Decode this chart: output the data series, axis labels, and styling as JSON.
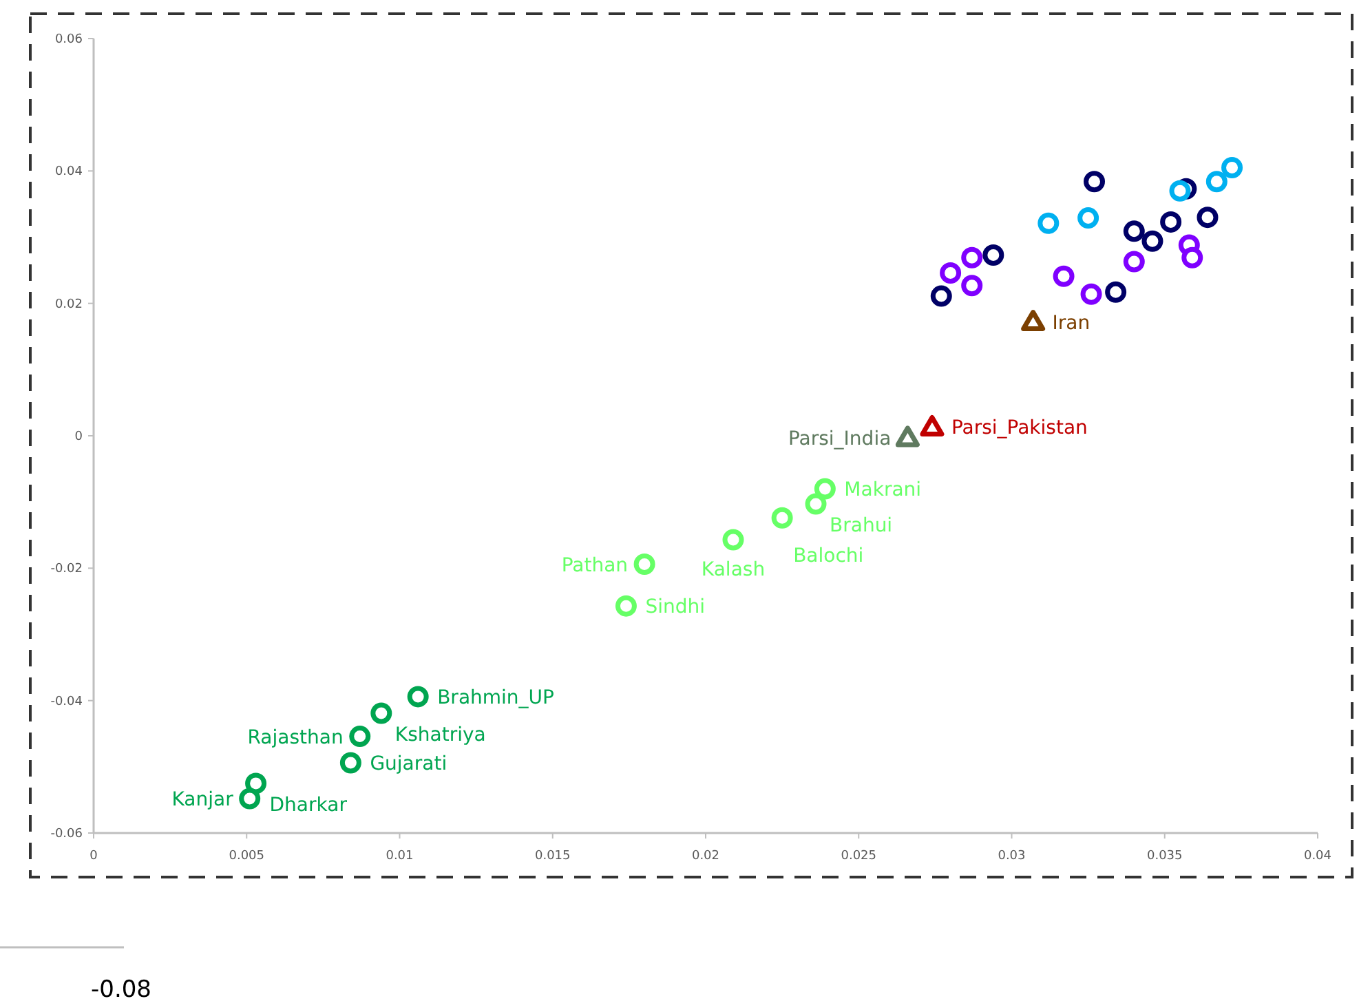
{
  "chart_data": {
    "type": "scatter",
    "xlim": [
      0,
      0.04
    ],
    "ylim": [
      -0.06,
      0.06
    ],
    "xticks": [
      0,
      0.005,
      0.01,
      0.015,
      0.02,
      0.025,
      0.03,
      0.035,
      0.04
    ],
    "yticks": [
      -0.06,
      -0.04,
      -0.02,
      0,
      0.02,
      0.04,
      0.06
    ],
    "marker": "circle",
    "grid": false,
    "annotations": [
      "-0.08"
    ],
    "series": [
      {
        "name": "Dharkar",
        "color": "#00a550",
        "x": [
          0.0053
        ],
        "values": [
          -0.0525
        ]
      },
      {
        "name": "Kanjar",
        "color": "#00a550",
        "x": [
          0.0051
        ],
        "values": [
          -0.0548
        ]
      },
      {
        "name": "Gujarati",
        "color": "#00a550",
        "x": [
          0.0084
        ],
        "values": [
          -0.0494
        ]
      },
      {
        "name": "Rajasthan",
        "color": "#00a550",
        "x": [
          0.0087
        ],
        "values": [
          -0.0454
        ]
      },
      {
        "name": "Kshatriya",
        "color": "#00a550",
        "x": [
          0.0094
        ],
        "values": [
          -0.0419
        ]
      },
      {
        "name": "Brahmin_UP",
        "color": "#00a550",
        "x": [
          0.0106
        ],
        "values": [
          -0.0394
        ]
      },
      {
        "name": "Sindhi",
        "color": "#66ff66",
        "x": [
          0.0174
        ],
        "values": [
          -0.0257
        ]
      },
      {
        "name": "Pathan",
        "color": "#66ff66",
        "x": [
          0.018
        ],
        "values": [
          -0.0194
        ]
      },
      {
        "name": "Kalash",
        "color": "#66ff66",
        "x": [
          0.0209
        ],
        "values": [
          -0.0157
        ]
      },
      {
        "name": "Balochi",
        "color": "#66ff66",
        "x": [
          0.0225
        ],
        "values": [
          -0.0124
        ]
      },
      {
        "name": "Brahui",
        "color": "#66ff66",
        "x": [
          0.0236
        ],
        "values": [
          -0.0103
        ]
      },
      {
        "name": "Makrani",
        "color": "#66ff66",
        "x": [
          0.0239
        ],
        "values": [
          -0.008
        ]
      },
      {
        "name": "Parsi_India",
        "color": "#5f7a5f",
        "marker": "triangle",
        "x": [
          0.0266
        ],
        "values": [
          -0.0003
        ]
      },
      {
        "name": "Parsi_Pakistan",
        "color": "#c00000",
        "marker": "triangle",
        "x": [
          0.0274
        ],
        "values": [
          0.0013
        ]
      },
      {
        "name": "Iran",
        "color": "#7b3f00",
        "marker": "triangle",
        "x": [
          0.0307
        ],
        "values": [
          0.0172
        ]
      },
      {
        "color": "#000066",
        "x": [
          0.0327,
          0.0294,
          0.0277,
          0.0352,
          0.0364,
          0.0357,
          0.034,
          0.0346,
          0.0334
        ],
        "values": [
          0.0384,
          0.0273,
          0.0211,
          0.0323,
          0.033,
          0.0373,
          0.0309,
          0.0294,
          0.0217
        ]
      },
      {
        "color": "#00b0f0",
        "x": [
          0.0312,
          0.0325,
          0.0355,
          0.0367,
          0.0372
        ],
        "values": [
          0.0321,
          0.0329,
          0.037,
          0.0384,
          0.0405
        ]
      },
      {
        "color": "#7f00ff",
        "x": [
          0.028,
          0.0287,
          0.0287,
          0.0317,
          0.0326,
          0.034,
          0.0358,
          0.0359
        ],
        "values": [
          0.0246,
          0.0269,
          0.0227,
          0.0241,
          0.0214,
          0.0263,
          0.0288,
          0.0269
        ]
      }
    ]
  }
}
